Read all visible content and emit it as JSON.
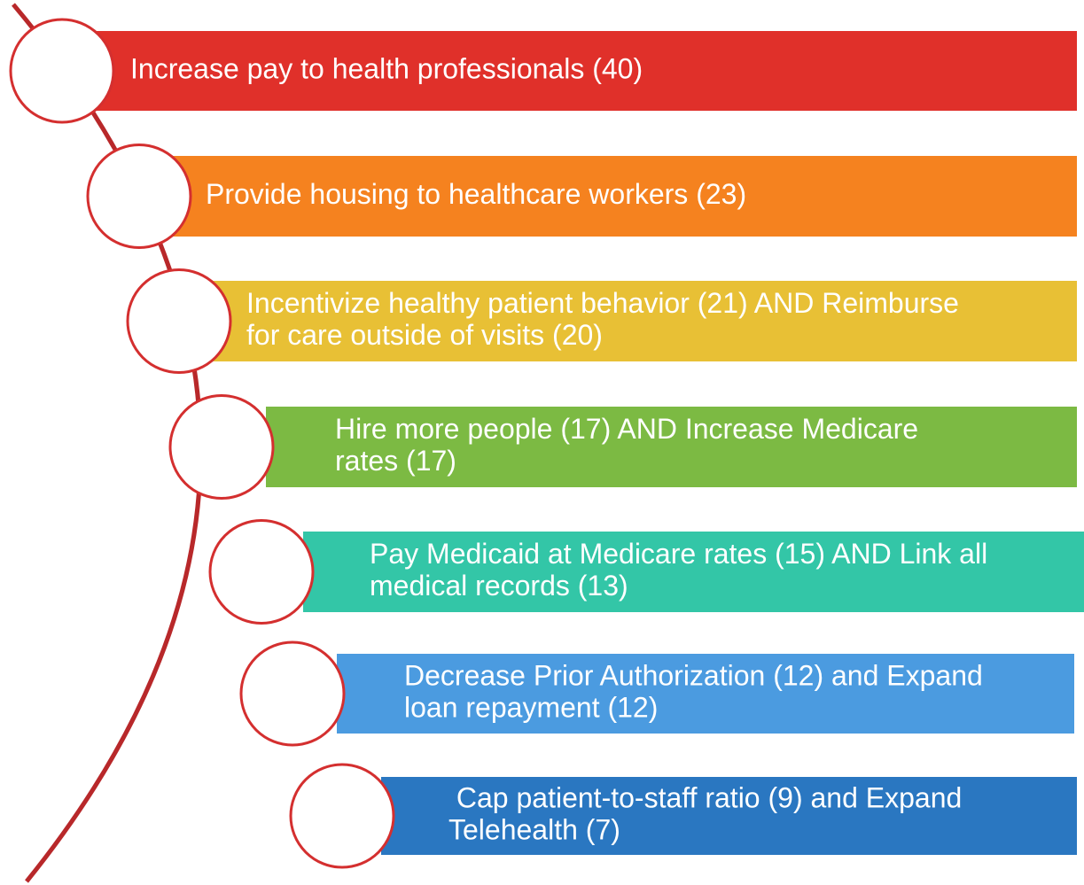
{
  "items": [
    {
      "lines": [
        "Increase pay to health professionals (40)"
      ],
      "color": "#e0302a"
    },
    {
      "lines": [
        "Provide housing to healthcare workers (23)"
      ],
      "color": "#f5821f"
    },
    {
      "lines": [
        "Incentivize healthy patient behavior (21) AND Reimburse",
        "for care outside of visits (20)"
      ],
      "color": "#e8c035"
    },
    {
      "lines": [
        "Hire more people (17) AND Increase Medicare",
        "rates (17)"
      ],
      "color": "#7cba43"
    },
    {
      "lines": [
        "Pay Medicaid at Medicare rates (15) AND Link all",
        "medical records (13)"
      ],
      "color": "#33c6a7"
    },
    {
      "lines": [
        "Decrease Prior Authorization (12) and Expand",
        "loan repayment (12)"
      ],
      "color": "#4b9be0"
    },
    {
      "lines": [
        " Cap patient-to-staff ratio (9) and Expand",
        "Telehealth (7)"
      ],
      "color": "#2a77c1"
    }
  ]
}
